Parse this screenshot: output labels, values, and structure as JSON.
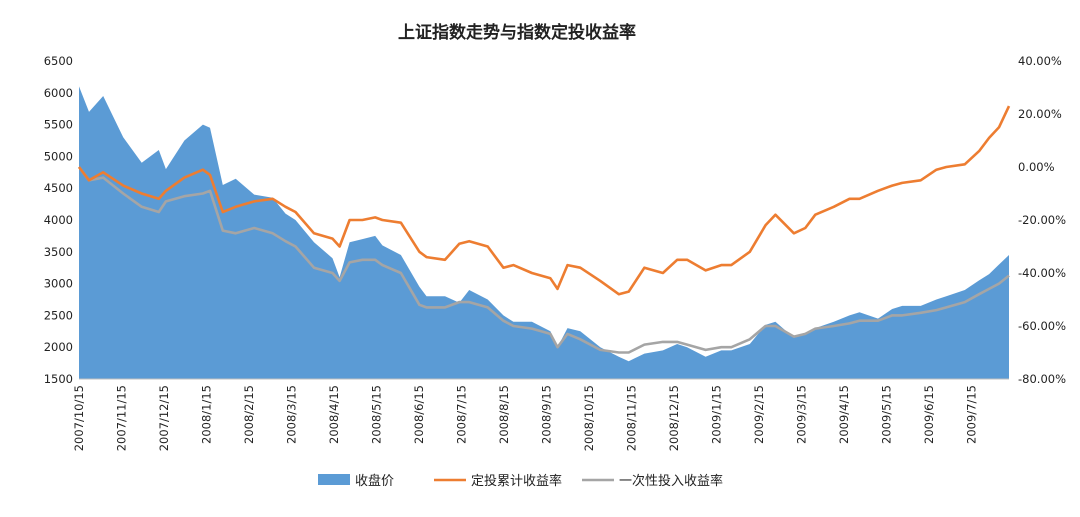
{
  "chart_data": {
    "type": "area+line",
    "title": "上证指数走势与指数定投收益率",
    "x_tick_labels": [
      "2007/10/15",
      "2007/11/15",
      "2007/12/15",
      "2008/1/15",
      "2008/2/15",
      "2008/3/15",
      "2008/4/15",
      "2008/5/15",
      "2008/6/15",
      "2008/7/15",
      "2008/8/15",
      "2008/9/15",
      "2008/10/15",
      "2008/11/15",
      "2008/12/15",
      "2009/1/15",
      "2009/2/15",
      "2009/3/15",
      "2009/4/15",
      "2009/5/15",
      "2009/6/15",
      "2009/7/15"
    ],
    "y_left": {
      "ylim": [
        1500,
        6500
      ],
      "ticks": [
        "1500",
        "2000",
        "2500",
        "3000",
        "3500",
        "4000",
        "4500",
        "5000",
        "5500",
        "6000",
        "6500"
      ]
    },
    "y_right": {
      "ylim": [
        -80,
        40
      ],
      "ticks": [
        "-80.00%",
        "-60.00%",
        "-40.00%",
        "-20.00%",
        "0.00%",
        "20.00%",
        "40.00%"
      ]
    },
    "grid": false,
    "legend_position": "bottom",
    "series": [
      {
        "name": "收盘价",
        "kind": "area",
        "axis": "left",
        "color": "#5b9bd5",
        "x": [
          "2007/10/15",
          "2007/10/22",
          "2007/11/1",
          "2007/11/15",
          "2007/11/28",
          "2007/12/10",
          "2007/12/15",
          "2007/12/28",
          "2008/1/10",
          "2008/1/15",
          "2008/1/24",
          "2008/2/2",
          "2008/2/15",
          "2008/2/28",
          "2008/3/8",
          "2008/3/15",
          "2008/3/28",
          "2008/4/10",
          "2008/4/15",
          "2008/4/22",
          "2008/5/1",
          "2008/5/10",
          "2008/5/15",
          "2008/5/28",
          "2008/6/10",
          "2008/6/15",
          "2008/6/28",
          "2008/7/8",
          "2008/7/15",
          "2008/7/28",
          "2008/8/8",
          "2008/8/15",
          "2008/8/28",
          "2008/9/10",
          "2008/9/15",
          "2008/9/22",
          "2008/10/1",
          "2008/10/15",
          "2008/10/28",
          "2008/11/4",
          "2008/11/15",
          "2008/11/28",
          "2008/12/8",
          "2008/12/15",
          "2008/12/28",
          "2009/1/8",
          "2009/1/15",
          "2009/1/28",
          "2009/2/8",
          "2009/2/15",
          "2009/2/28",
          "2009/3/8",
          "2009/3/15",
          "2009/3/28",
          "2009/4/8",
          "2009/4/15",
          "2009/4/28",
          "2009/5/8",
          "2009/5/15",
          "2009/5/28",
          "2009/6/8",
          "2009/6/15",
          "2009/6/28",
          "2009/7/8",
          "2009/7/15",
          "2009/7/22",
          "2009/7/29"
        ],
        "values": [
          6100,
          5700,
          5950,
          5300,
          4900,
          5100,
          4800,
          5250,
          5500,
          5450,
          4550,
          4650,
          4400,
          4350,
          4100,
          4000,
          3650,
          3400,
          3100,
          3650,
          3700,
          3750,
          3600,
          3450,
          2950,
          2800,
          2800,
          2700,
          2900,
          2750,
          2500,
          2400,
          2400,
          2250,
          2000,
          2300,
          2250,
          2000,
          1850,
          1780,
          1900,
          1950,
          2050,
          2000,
          1850,
          1950,
          1950,
          2050,
          2350,
          2400,
          2150,
          2200,
          2300,
          2400,
          2500,
          2550,
          2450,
          2600,
          2650,
          2650,
          2750,
          2800,
          2900,
          3050,
          3150,
          3300,
          3450
        ]
      },
      {
        "name": "定投累计收益率",
        "kind": "line",
        "axis": "right",
        "color": "#ed7d31",
        "unit": "%",
        "x": [
          "2007/10/15",
          "2007/10/22",
          "2007/11/1",
          "2007/11/15",
          "2007/11/28",
          "2007/12/10",
          "2007/12/15",
          "2007/12/28",
          "2008/1/10",
          "2008/1/15",
          "2008/1/24",
          "2008/2/2",
          "2008/2/15",
          "2008/2/28",
          "2008/3/8",
          "2008/3/15",
          "2008/3/28",
          "2008/4/10",
          "2008/4/15",
          "2008/4/22",
          "2008/5/1",
          "2008/5/10",
          "2008/5/15",
          "2008/5/28",
          "2008/6/10",
          "2008/6/15",
          "2008/6/28",
          "2008/7/8",
          "2008/7/15",
          "2008/7/28",
          "2008/8/8",
          "2008/8/15",
          "2008/8/28",
          "2008/9/10",
          "2008/9/15",
          "2008/9/22",
          "2008/10/1",
          "2008/10/15",
          "2008/10/28",
          "2008/11/4",
          "2008/11/15",
          "2008/11/28",
          "2008/12/8",
          "2008/12/15",
          "2008/12/28",
          "2009/1/8",
          "2009/1/15",
          "2009/1/28",
          "2009/2/8",
          "2009/2/15",
          "2009/2/28",
          "2009/3/8",
          "2009/3/15",
          "2009/3/28",
          "2009/4/8",
          "2009/4/15",
          "2009/4/28",
          "2009/5/8",
          "2009/5/15",
          "2009/5/28",
          "2009/6/8",
          "2009/6/15",
          "2009/6/28",
          "2009/7/8",
          "2009/7/15",
          "2009/7/22",
          "2009/7/29"
        ],
        "values": [
          0,
          -5,
          -2,
          -7,
          -10,
          -12,
          -9,
          -4,
          -1,
          -3,
          -17,
          -15,
          -13,
          -12,
          -15,
          -17,
          -25,
          -27,
          -30,
          -20,
          -20,
          -19,
          -20,
          -21,
          -32,
          -34,
          -35,
          -29,
          -28,
          -30,
          -38,
          -37,
          -40,
          -42,
          -46,
          -37,
          -38,
          -43,
          -48,
          -47,
          -38,
          -40,
          -35,
          -35,
          -39,
          -37,
          -37,
          -32,
          -22,
          -18,
          -25,
          -23,
          -18,
          -15,
          -12,
          -12,
          -9,
          -7,
          -6,
          -5,
          -1,
          0,
          1,
          6,
          11,
          15,
          23
        ]
      },
      {
        "name": "一次性投入收益率",
        "kind": "line",
        "axis": "right",
        "color": "#a5a5a5",
        "unit": "%",
        "x": [
          "2007/10/15",
          "2007/10/22",
          "2007/11/1",
          "2007/11/15",
          "2007/11/28",
          "2007/12/10",
          "2007/12/15",
          "2007/12/28",
          "2008/1/10",
          "2008/1/15",
          "2008/1/24",
          "2008/2/2",
          "2008/2/15",
          "2008/2/28",
          "2008/3/8",
          "2008/3/15",
          "2008/3/28",
          "2008/4/10",
          "2008/4/15",
          "2008/4/22",
          "2008/5/1",
          "2008/5/10",
          "2008/5/15",
          "2008/5/28",
          "2008/6/10",
          "2008/6/15",
          "2008/6/28",
          "2008/7/8",
          "2008/7/15",
          "2008/7/28",
          "2008/8/8",
          "2008/8/15",
          "2008/8/28",
          "2008/9/10",
          "2008/9/15",
          "2008/9/22",
          "2008/10/1",
          "2008/10/15",
          "2008/10/28",
          "2008/11/4",
          "2008/11/15",
          "2008/11/28",
          "2008/12/8",
          "2008/12/15",
          "2008/12/28",
          "2009/1/8",
          "2009/1/15",
          "2009/1/28",
          "2009/2/8",
          "2009/2/15",
          "2009/2/28",
          "2009/3/8",
          "2009/3/15",
          "2009/3/28",
          "2009/4/8",
          "2009/4/15",
          "2009/4/28",
          "2009/5/8",
          "2009/5/15",
          "2009/5/28",
          "2009/6/8",
          "2009/6/15",
          "2009/6/28",
          "2009/7/8",
          "2009/7/15",
          "2009/7/22",
          "2009/7/29"
        ],
        "values": [
          0,
          -5,
          -4,
          -10,
          -15,
          -17,
          -13,
          -11,
          -10,
          -9,
          -24,
          -25,
          -23,
          -25,
          -28,
          -30,
          -38,
          -40,
          -43,
          -36,
          -35,
          -35,
          -37,
          -40,
          -52,
          -53,
          -53,
          -51,
          -51,
          -53,
          -58,
          -60,
          -61,
          -63,
          -68,
          -63,
          -65,
          -69,
          -70,
          -70,
          -67,
          -66,
          -66,
          -67,
          -69,
          -68,
          -68,
          -65,
          -60,
          -60,
          -64,
          -63,
          -61,
          -60,
          -59,
          -58,
          -58,
          -56,
          -56,
          -55,
          -54,
          -53,
          -51,
          -48,
          -46,
          -44,
          -41
        ]
      }
    ]
  }
}
